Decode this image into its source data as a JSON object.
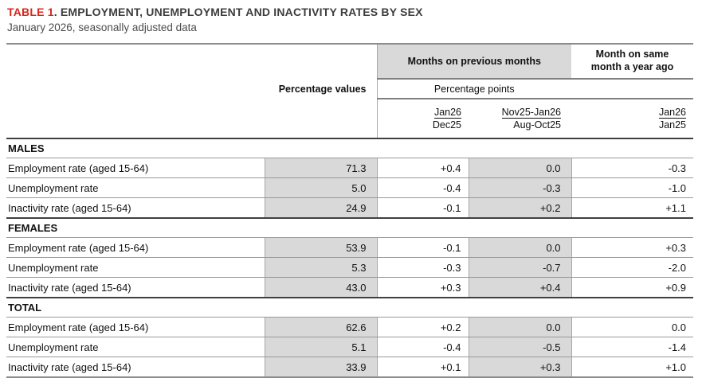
{
  "title": {
    "prefix": "TABLE 1",
    "rest": ". EMPLOYMENT, UNEMPLOYMENT AND INACTIVITY RATES BY SEX"
  },
  "subtitle": "January 2026, seasonally adjusted data",
  "colors": {
    "accent_red": "#d9261c",
    "cell_gray": "#d9d9d9",
    "major_line": "#808080",
    "row_line": "#999999",
    "section_line": "#404040"
  },
  "table": {
    "headers": {
      "percentage_values": "Percentage values",
      "months_on_previous_months": "Months on previous months",
      "month_on_same_month_a_year_ago": "Month on same month a year ago",
      "percentage_points": "Percentage points",
      "periods": [
        {
          "num": "Jan26",
          "den": "Dec25"
        },
        {
          "num": "Nov25-Jan26",
          "den": "Aug-Oct25"
        },
        {
          "num": "Jan26",
          "den": "Jan25"
        }
      ]
    },
    "sections": [
      {
        "name": "MALES",
        "rows": [
          {
            "label": "Employment rate (aged 15-64)",
            "values": [
              "71.3",
              "+0.4",
              "0.0",
              "-0.3"
            ]
          },
          {
            "label": "Unemployment rate",
            "values": [
              "5.0",
              "-0.4",
              "-0.3",
              "-1.0"
            ]
          },
          {
            "label": "Inactivity rate (aged 15-64)",
            "values": [
              "24.9",
              "-0.1",
              "+0.2",
              "+1.1"
            ]
          }
        ]
      },
      {
        "name": "FEMALES",
        "rows": [
          {
            "label": "Employment rate (aged 15-64)",
            "values": [
              "53.9",
              "-0.1",
              "0.0",
              "+0.3"
            ]
          },
          {
            "label": "Unemployment rate",
            "values": [
              "5.3",
              "-0.3",
              "-0.7",
              "-2.0"
            ]
          },
          {
            "label": "Inactivity rate (aged 15-64)",
            "values": [
              "43.0",
              "+0.3",
              "+0.4",
              "+0.9"
            ]
          }
        ]
      },
      {
        "name": "TOTAL",
        "rows": [
          {
            "label": "Employment rate (aged 15-64)",
            "values": [
              "62.6",
              "+0.2",
              "0.0",
              "0.0"
            ]
          },
          {
            "label": "Unemployment rate",
            "values": [
              "5.1",
              "-0.4",
              "-0.5",
              "-1.4"
            ]
          },
          {
            "label": "Inactivity rate (aged 15-64)",
            "values": [
              "33.9",
              "+0.1",
              "+0.3",
              "+1.0"
            ]
          }
        ]
      }
    ]
  }
}
